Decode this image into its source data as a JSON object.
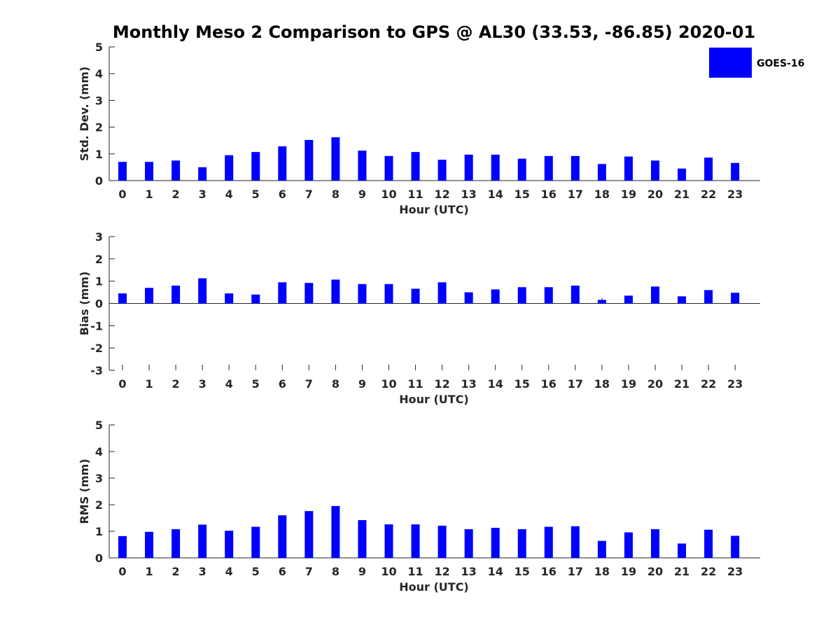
{
  "title": "Monthly Meso 2 Comparison to GPS @ AL30 (33.53, -86.85) 2020-01",
  "legend": {
    "label": "GOES-16",
    "color": "#0000ff",
    "placement": "top-right"
  },
  "chart_data": [
    {
      "type": "bar",
      "xlabel": "Hour (UTC)",
      "ylabel": "Std. Dev. (mm)",
      "ylim": [
        0,
        5
      ],
      "yticks": [
        "0",
        "1",
        "2",
        "3",
        "4",
        "5"
      ],
      "categories": [
        "0",
        "1",
        "2",
        "3",
        "4",
        "5",
        "6",
        "7",
        "8",
        "9",
        "10",
        "11",
        "12",
        "13",
        "14",
        "15",
        "16",
        "17",
        "18",
        "19",
        "20",
        "21",
        "22",
        "23"
      ],
      "series": [
        {
          "name": "GOES-16",
          "values": [
            0.7,
            0.7,
            0.75,
            0.5,
            0.95,
            1.07,
            1.28,
            1.52,
            1.62,
            1.12,
            0.92,
            1.07,
            0.78,
            0.97,
            0.97,
            0.82,
            0.92,
            0.92,
            0.62,
            0.9,
            0.75,
            0.45,
            0.86,
            0.66
          ]
        }
      ],
      "grid": false
    },
    {
      "type": "bar",
      "xlabel": "Hour (UTC)",
      "ylabel": "Bias (mm)",
      "ylim": [
        -3,
        3
      ],
      "yticks": [
        "-3",
        "-2",
        "-1",
        "0",
        "1",
        "2",
        "3"
      ],
      "categories": [
        "0",
        "1",
        "2",
        "3",
        "4",
        "5",
        "6",
        "7",
        "8",
        "9",
        "10",
        "11",
        "12",
        "13",
        "14",
        "15",
        "16",
        "17",
        "18",
        "19",
        "20",
        "21",
        "22",
        "23"
      ],
      "series": [
        {
          "name": "GOES-16",
          "values": [
            0.45,
            0.7,
            0.8,
            1.13,
            0.45,
            0.4,
            0.95,
            0.92,
            1.07,
            0.87,
            0.87,
            0.66,
            0.95,
            0.5,
            0.63,
            0.73,
            0.73,
            0.8,
            0.16,
            0.35,
            0.76,
            0.32,
            0.6,
            0.48
          ]
        }
      ],
      "grid": false
    },
    {
      "type": "bar",
      "xlabel": "Hour (UTC)",
      "ylabel": "RMS (mm)",
      "ylim": [
        0,
        5
      ],
      "yticks": [
        "0",
        "1",
        "2",
        "3",
        "4",
        "5"
      ],
      "categories": [
        "0",
        "1",
        "2",
        "3",
        "4",
        "5",
        "6",
        "7",
        "8",
        "9",
        "10",
        "11",
        "12",
        "13",
        "14",
        "15",
        "16",
        "17",
        "18",
        "19",
        "20",
        "21",
        "22",
        "23"
      ],
      "series": [
        {
          "name": "GOES-16",
          "values": [
            0.82,
            0.98,
            1.08,
            1.25,
            1.02,
            1.17,
            1.6,
            1.76,
            1.95,
            1.42,
            1.26,
            1.26,
            1.21,
            1.08,
            1.13,
            1.08,
            1.17,
            1.19,
            0.64,
            0.96,
            1.08,
            0.54,
            1.06,
            0.83
          ]
        }
      ],
      "grid": false
    }
  ]
}
